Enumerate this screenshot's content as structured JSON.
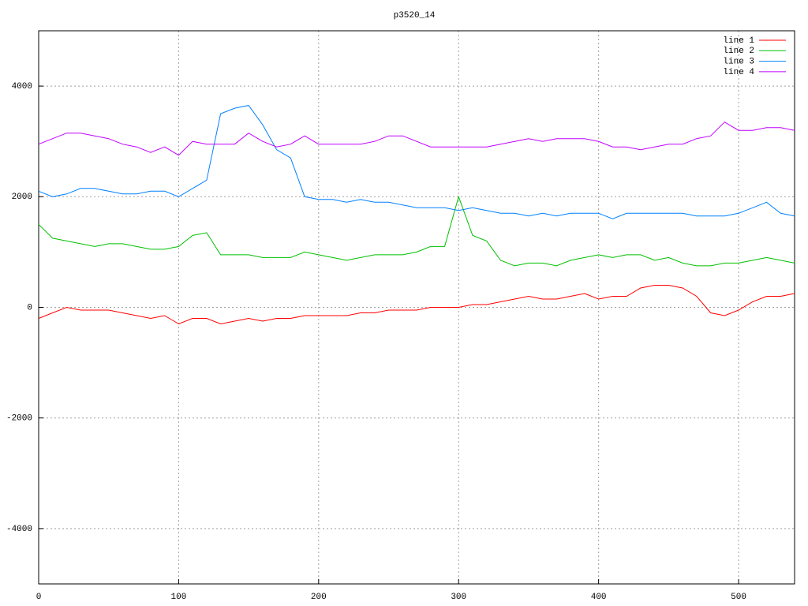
{
  "chart_data": {
    "type": "line",
    "title": "p3520_14",
    "x": [
      0,
      10,
      20,
      30,
      40,
      50,
      60,
      70,
      80,
      90,
      100,
      110,
      120,
      130,
      140,
      150,
      160,
      170,
      180,
      190,
      200,
      210,
      220,
      230,
      240,
      250,
      260,
      270,
      280,
      290,
      300,
      310,
      320,
      330,
      340,
      350,
      360,
      370,
      380,
      390,
      400,
      410,
      420,
      430,
      440,
      450,
      460,
      470,
      480,
      490,
      500,
      510,
      520,
      530,
      540
    ],
    "series": [
      {
        "name": "line 1",
        "color": "#ff0000",
        "values": [
          -200,
          -100,
          0,
          -50,
          -50,
          -50,
          -100,
          -150,
          -200,
          -150,
          -300,
          -200,
          -200,
          -300,
          -250,
          -200,
          -250,
          -200,
          -200,
          -150,
          -150,
          -150,
          -150,
          -100,
          -100,
          -50,
          -50,
          -50,
          0,
          0,
          0,
          50,
          50,
          100,
          150,
          200,
          150,
          150,
          200,
          250,
          150,
          200,
          200,
          350,
          400,
          400,
          350,
          200,
          -100,
          -150,
          -50,
          100,
          200,
          200,
          250
        ]
      },
      {
        "name": "line 2",
        "color": "#00c000",
        "values": [
          1500,
          1250,
          1200,
          1150,
          1100,
          1150,
          1150,
          1100,
          1050,
          1050,
          1100,
          1300,
          1350,
          950,
          950,
          950,
          900,
          900,
          900,
          1000,
          950,
          900,
          850,
          900,
          950,
          950,
          950,
          1000,
          1100,
          1100,
          2000,
          1300,
          1200,
          850,
          750,
          800,
          800,
          750,
          850,
          900,
          950,
          900,
          950,
          950,
          850,
          900,
          800,
          750,
          750,
          800,
          800,
          850,
          900,
          850,
          800
        ]
      },
      {
        "name": "line 3",
        "color": "#0080ff",
        "values": [
          2100,
          2000,
          2050,
          2150,
          2150,
          2100,
          2050,
          2050,
          2100,
          2100,
          2000,
          2150,
          2300,
          3500,
          3600,
          3650,
          3300,
          2850,
          2700,
          2000,
          1950,
          1950,
          1900,
          1950,
          1900,
          1900,
          1850,
          1800,
          1800,
          1800,
          1750,
          1800,
          1750,
          1700,
          1700,
          1650,
          1700,
          1650,
          1700,
          1700,
          1700,
          1600,
          1700,
          1700,
          1700,
          1700,
          1700,
          1650,
          1650,
          1650,
          1700,
          1800,
          1900,
          1700,
          1650
        ]
      },
      {
        "name": "line 4",
        "color": "#c000ff",
        "values": [
          2950,
          3050,
          3150,
          3150,
          3100,
          3050,
          2950,
          2900,
          2800,
          2900,
          2750,
          3000,
          2950,
          2950,
          2950,
          3150,
          3000,
          2900,
          2950,
          3100,
          2950,
          2950,
          2950,
          2950,
          3000,
          3100,
          3100,
          3000,
          2900,
          2900,
          2900,
          2900,
          2900,
          2950,
          3000,
          3050,
          3000,
          3050,
          3050,
          3050,
          3000,
          2900,
          2900,
          2850,
          2900,
          2950,
          2950,
          3050,
          3100,
          3350,
          3200,
          3200,
          3250,
          3250,
          3200
        ]
      }
    ],
    "xlim": [
      0,
      540
    ],
    "ylim": [
      -5000,
      5000
    ],
    "xticks": [
      0,
      100,
      200,
      300,
      400,
      500
    ],
    "yticks": [
      -4000,
      -2000,
      0,
      2000,
      4000
    ],
    "grid": true,
    "legend": "top-right"
  }
}
